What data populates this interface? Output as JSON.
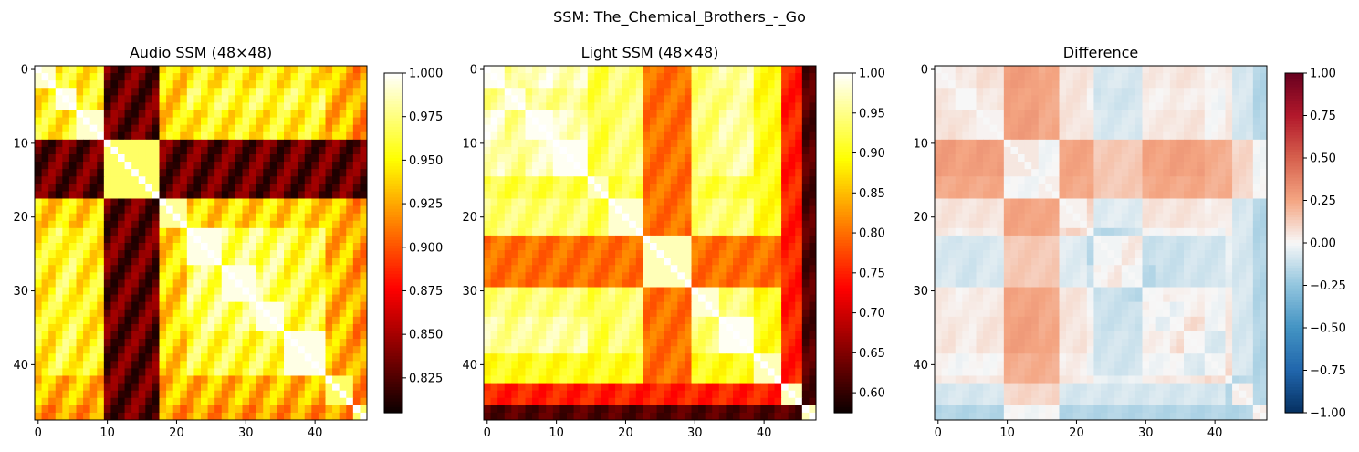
{
  "figure": {
    "suptitle": "SSM: The_Chemical_Brothers_-_Go"
  },
  "chart_data": [
    {
      "type": "heatmap",
      "title": "Audio SSM (48×48)",
      "size": 48,
      "colormap": "hot",
      "clim": [
        0.805,
        1.0
      ],
      "xticks": [
        0,
        10,
        20,
        30,
        40
      ],
      "yticks": [
        0,
        10,
        20,
        30,
        40
      ],
      "colorbar_ticks": [
        "1.000",
        "0.975",
        "0.950",
        "0.925",
        "0.900",
        "0.875",
        "0.850",
        "0.825"
      ],
      "colorbar_tick_values": [
        1.0,
        0.975,
        0.95,
        0.925,
        0.9,
        0.875,
        0.85,
        0.825
      ],
      "section_blocks": [
        [
          0,
          2
        ],
        [
          3,
          5
        ],
        [
          6,
          9
        ],
        [
          10,
          17
        ],
        [
          18,
          21
        ],
        [
          22,
          26
        ],
        [
          27,
          31
        ],
        [
          32,
          35
        ],
        [
          36,
          41
        ],
        [
          42,
          45
        ],
        [
          46,
          47
        ]
      ],
      "section_profile": [
        0.95,
        0.96,
        0.95,
        0.83,
        0.94,
        0.97,
        0.98,
        0.97,
        0.96,
        0.93,
        0.92
      ]
    },
    {
      "type": "heatmap",
      "title": "Light SSM (48×48)",
      "size": 48,
      "colormap": "hot",
      "clim": [
        0.575,
        1.0
      ],
      "xticks": [
        0,
        10,
        20,
        30,
        40
      ],
      "yticks": [
        0,
        10,
        20,
        30,
        40
      ],
      "colorbar_ticks": [
        "1.00",
        "0.95",
        "0.90",
        "0.85",
        "0.80",
        "0.75",
        "0.70",
        "0.65",
        "0.60"
      ],
      "colorbar_tick_values": [
        1.0,
        0.95,
        0.9,
        0.85,
        0.8,
        0.75,
        0.7,
        0.65,
        0.6
      ],
      "section_blocks": [
        [
          0,
          2
        ],
        [
          3,
          5
        ],
        [
          6,
          9
        ],
        [
          10,
          14
        ],
        [
          15,
          17
        ],
        [
          18,
          22
        ],
        [
          23,
          29
        ],
        [
          30,
          33
        ],
        [
          34,
          38
        ],
        [
          39,
          42
        ],
        [
          43,
          45
        ],
        [
          46,
          47
        ]
      ],
      "section_profile": [
        0.98,
        0.95,
        0.99,
        0.97,
        0.92,
        0.94,
        0.8,
        0.94,
        0.96,
        0.9,
        0.75,
        0.62
      ]
    },
    {
      "type": "heatmap",
      "title": "Difference",
      "size": 48,
      "colormap": "RdBu_r",
      "clim": [
        -1.0,
        1.0
      ],
      "xticks": [
        0,
        10,
        20,
        30,
        40
      ],
      "yticks": [
        0,
        10,
        20,
        30,
        40
      ],
      "colorbar_ticks": [
        "1.00",
        "0.75",
        "0.50",
        "0.25",
        "0.00",
        "−0.25",
        "−0.50",
        "−0.75",
        "−1.00"
      ],
      "colorbar_tick_values": [
        1.0,
        0.75,
        0.5,
        0.25,
        0.0,
        -0.25,
        -0.5,
        -0.75,
        -1.0
      ]
    }
  ]
}
